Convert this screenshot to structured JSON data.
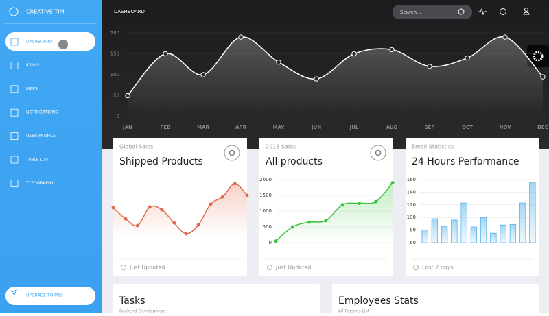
{
  "sidebar": {
    "brand": "CREATIVE TIM",
    "items": [
      "DASHBOARD",
      "ICONS",
      "MAPS",
      "NOTIFICATIONS",
      "USER PROFILE",
      "TABLE LIST",
      "TYPOGRAPHY"
    ],
    "upgrade": "UPGRADE TO PRO"
  },
  "navbar": {
    "title": "DASHBOARD",
    "search_placeholder": "Search..."
  },
  "big_chart": {
    "type": "line",
    "categories": [
      "JAN",
      "FEB",
      "MAR",
      "APR",
      "MAY",
      "JUN",
      "JUL",
      "AUG",
      "SEP",
      "OCT",
      "NOV",
      "DEC"
    ],
    "values": [
      50,
      150,
      100,
      190,
      130,
      90,
      150,
      160,
      120,
      140,
      190,
      95
    ],
    "ylim": [
      0,
      200
    ],
    "yticks": [
      0,
      50,
      100,
      150,
      200
    ],
    "color": "#ffffff"
  },
  "cards": [
    {
      "subtitle": "Global Sales",
      "title": "Shipped Products",
      "footer": "Just Updated",
      "chart": {
        "type": "line",
        "values": [
          42,
          26,
          16,
          43,
          39,
          20,
          4,
          17,
          47,
          58,
          77,
          60
        ],
        "ylim": [
          0,
          90
        ],
        "color": "#e0694a"
      }
    },
    {
      "subtitle": "2018 Sales",
      "title": "All products",
      "footer": "Just Updated",
      "chart": {
        "type": "line",
        "values": [
          50,
          500,
          650,
          700,
          1200,
          1250,
          1300,
          1900
        ],
        "ylim": [
          0,
          2000
        ],
        "yticks": [
          0,
          500,
          1000,
          1500,
          2000
        ],
        "color": "#38c23d"
      }
    },
    {
      "subtitle": "Email Statistics",
      "title": "24 Hours Performance",
      "footer": "Last 7 days",
      "chart": {
        "type": "bar",
        "values": [
          80,
          98,
          86,
          96,
          123,
          85,
          100,
          75,
          88,
          89,
          123,
          155
        ],
        "ylim": [
          60,
          160
        ],
        "yticks": [
          60,
          80,
          100,
          120,
          140,
          160
        ],
        "color": "#5ab4ea"
      }
    }
  ],
  "bottom_cards": [
    {
      "title": "Tasks",
      "subtitle": "Backend Development"
    },
    {
      "title": "Employees Stats",
      "subtitle": "All Persons List"
    }
  ]
}
